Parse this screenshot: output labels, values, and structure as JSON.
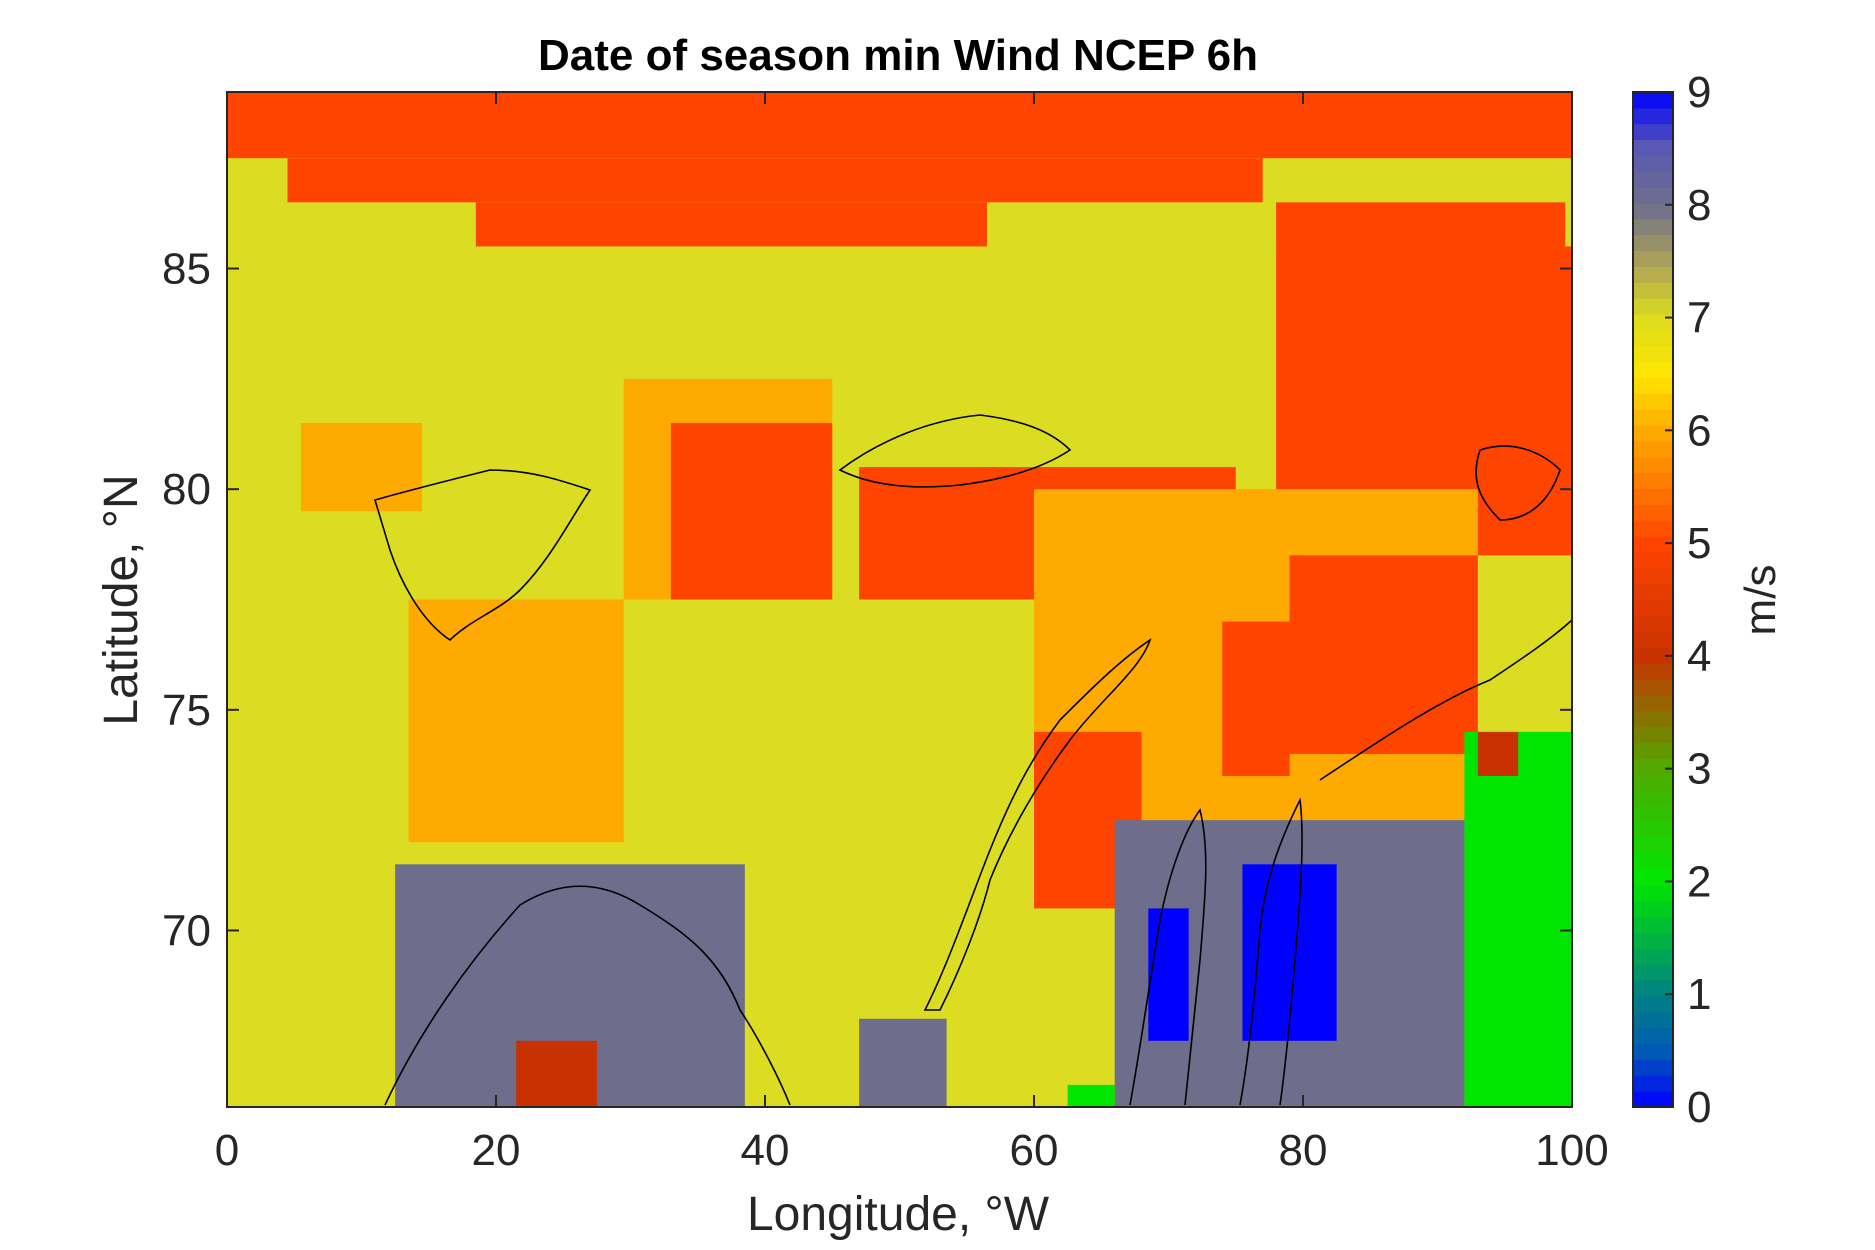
{
  "chart_data": {
    "type": "heatmap",
    "title": "Date of season min Wind NCEP 6h",
    "xlabel": "Longitude, °W",
    "ylabel": "Latitude, °N",
    "xlim": [
      0,
      100
    ],
    "ylim": [
      66,
      89
    ],
    "xticks": [
      0,
      20,
      40,
      60,
      80,
      100
    ],
    "yticks": [
      70,
      75,
      80,
      85
    ],
    "colorbar": {
      "label": "m/s",
      "range": [
        0,
        9
      ],
      "ticks": [
        0,
        1,
        2,
        3,
        4,
        5,
        6,
        7,
        8,
        9
      ]
    },
    "regions": [
      {
        "name": "north-strip",
        "value": 5,
        "x": [
          0,
          100
        ],
        "y": [
          87.5,
          89
        ]
      },
      {
        "name": "north-west-red",
        "value": 5,
        "x": [
          4.5,
          77
        ],
        "y": [
          86.5,
          87.5
        ]
      },
      {
        "name": "north-central-red",
        "value": 5,
        "x": [
          18.5,
          56.5
        ],
        "y": [
          85.5,
          86.5
        ]
      },
      {
        "name": "northeast-red",
        "value": 5,
        "x": [
          78,
          100
        ],
        "y": [
          78.5,
          85.5
        ]
      },
      {
        "name": "north-east-red-upper",
        "value": 5,
        "x": [
          78,
          99.5
        ],
        "y": [
          85.5,
          86.5
        ]
      },
      {
        "name": "greenland-sea-orange",
        "value": 6,
        "x": [
          13.5,
          29.5
        ],
        "y": [
          72,
          77.5
        ]
      },
      {
        "name": "svalbard-orange",
        "value": 6,
        "x": [
          5.5,
          14.5
        ],
        "y": [
          79.5,
          81.5
        ]
      },
      {
        "name": "fram-orange",
        "value": 6,
        "x": [
          29.5,
          45
        ],
        "y": [
          77.5,
          82.5
        ]
      },
      {
        "name": "franz-josef-red",
        "value": 5,
        "x": [
          33,
          45
        ],
        "y": [
          77.5,
          81.5
        ]
      },
      {
        "name": "barents-north-red",
        "value": 5,
        "x": [
          47,
          75
        ],
        "y": [
          77.5,
          80.5
        ]
      },
      {
        "name": "kara-orange",
        "value": 6,
        "x": [
          60,
          93
        ],
        "y": [
          72.5,
          80
        ]
      },
      {
        "name": "kara-red",
        "value": 5,
        "x": [
          60,
          68
        ],
        "y": [
          70.5,
          74.5
        ]
      },
      {
        "name": "kara-red-east",
        "value": 5,
        "x": [
          74,
          79
        ],
        "y": [
          73.5,
          77
        ]
      },
      {
        "name": "laptev-red",
        "value": 5,
        "x": [
          79,
          93
        ],
        "y": [
          74,
          78.5
        ]
      },
      {
        "name": "norway-gray",
        "value": 8,
        "x": [
          12.5,
          38.5
        ],
        "y": [
          66,
          71.5
        ]
      },
      {
        "name": "norway-red",
        "value": 4,
        "x": [
          21.5,
          27.5
        ],
        "y": [
          66,
          67.5
        ]
      },
      {
        "name": "kola-gray",
        "value": 8,
        "x": [
          47,
          53.5
        ],
        "y": [
          66,
          68
        ]
      },
      {
        "name": "yamal-gray",
        "value": 8,
        "x": [
          66,
          93.5
        ],
        "y": [
          66,
          72.5
        ]
      },
      {
        "name": "yamal-blue",
        "value": 9,
        "x": [
          68.5,
          71.5
        ],
        "y": [
          67.5,
          70.5
        ]
      },
      {
        "name": "gydan-blue",
        "value": 9,
        "x": [
          75.5,
          82.5
        ],
        "y": [
          67.5,
          71.5
        ]
      },
      {
        "name": "taymyr-green",
        "value": 2,
        "x": [
          92,
          100
        ],
        "y": [
          66,
          74.5
        ]
      },
      {
        "name": "taymyr-darkred",
        "value": 4,
        "x": [
          93,
          96
        ],
        "y": [
          73.5,
          74.5
        ]
      },
      {
        "name": "kara-green-south",
        "value": 2,
        "x": [
          62.5,
          66
        ],
        "y": [
          66,
          66.5
        ]
      }
    ],
    "grid": false
  }
}
